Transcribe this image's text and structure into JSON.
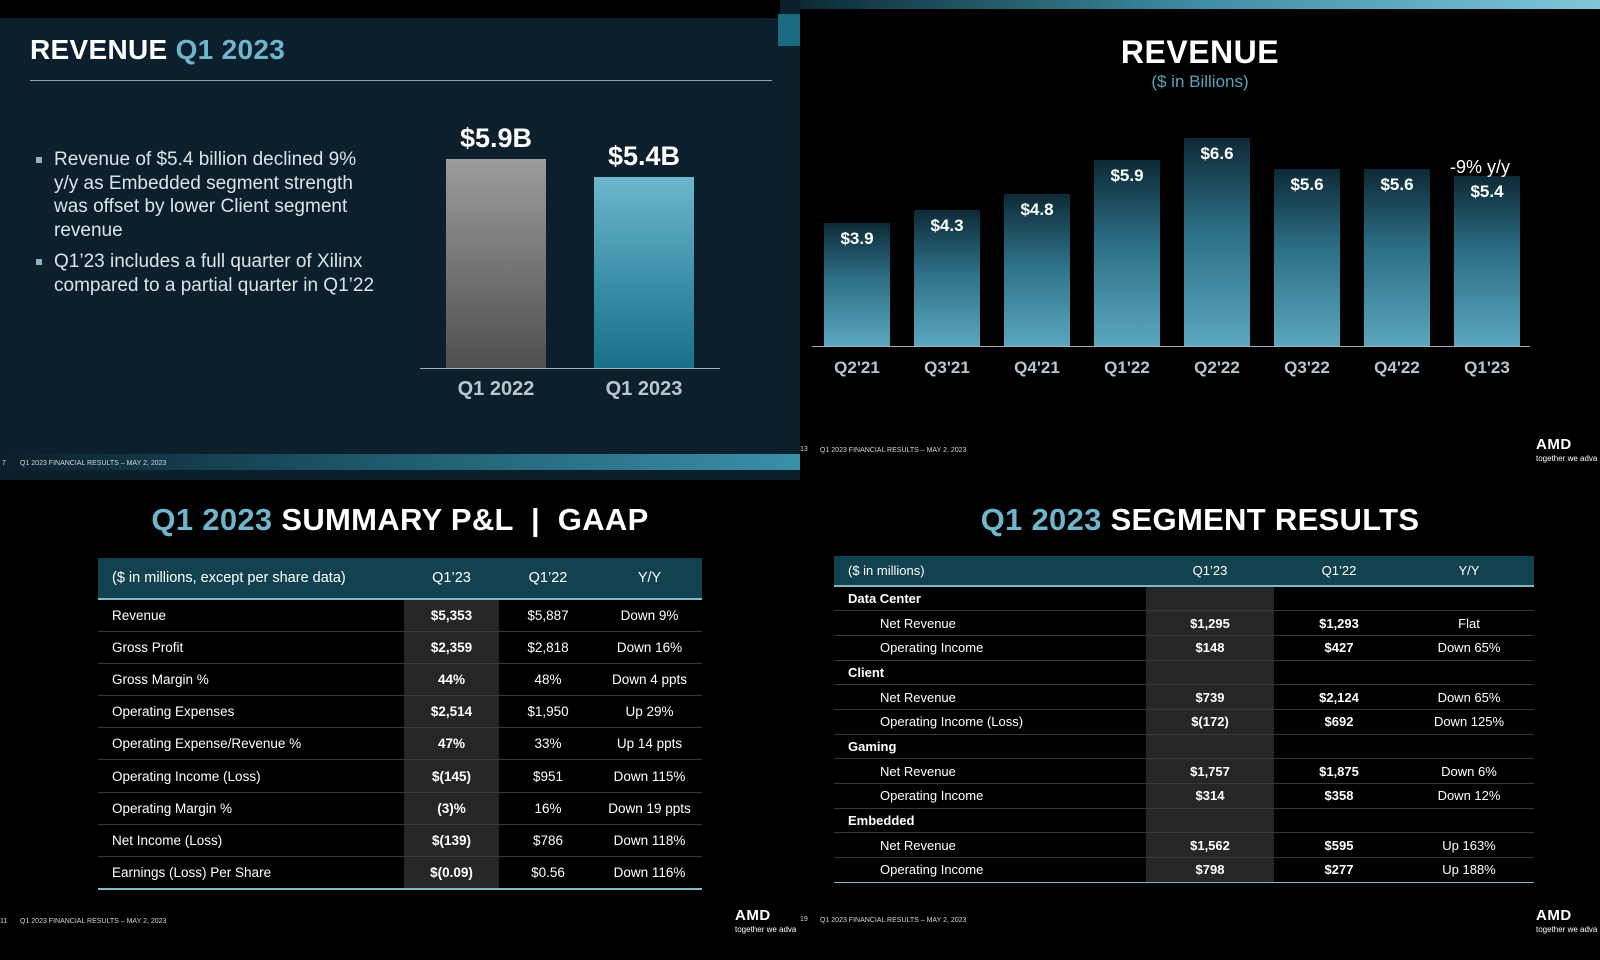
{
  "panel1": {
    "title_main": "REVENUE",
    "title_accent": "Q1 2023",
    "bullets": [
      "Revenue of $5.4 billion declined 9% y/y as Embedded segment strength was offset by lower Client segment revenue",
      "Q1’23 includes a full quarter of Xilinx compared to a partial quarter in Q1’22"
    ],
    "footer": "Q1 2023 FINANCIAL RESULTS – MAY 2, 2023",
    "page_number": "7"
  },
  "panel2": {
    "title": "REVENUE",
    "subtitle": "($ in Billions)",
    "annotation": "-9% y/y",
    "footer": "Q1 2023 FINANCIAL RESULTS – MAY 2, 2023",
    "page_number": "13",
    "logo": "AMD",
    "tagline": "together we adva"
  },
  "panel3": {
    "title_accent": "Q1 2023",
    "title_main": "SUMMARY P&L  |  GAAP",
    "headers": [
      "($ in millions, except per share data)",
      "Q1’23",
      "Q1’22",
      "Y/Y"
    ],
    "rows": [
      {
        "label": "Revenue",
        "q123": "$5,353",
        "q122": "$5,887",
        "yy": "Down 9%",
        "indent": false
      },
      {
        "label": "Gross Profit",
        "q123": "$2,359",
        "q122": "$2,818",
        "yy": "Down 16%",
        "indent": false
      },
      {
        "label": "Gross Margin %",
        "q123": "44%",
        "q122": "48%",
        "yy": "Down 4 ppts",
        "indent": true
      },
      {
        "label": "Operating Expenses",
        "q123": "$2,514",
        "q122": "$1,950",
        "yy": "Up 29%",
        "indent": false
      },
      {
        "label": "Operating Expense/Revenue %",
        "q123": "47%",
        "q122": "33%",
        "yy": "Up 14 ppts",
        "indent": true
      },
      {
        "label": "Operating Income (Loss)",
        "q123": "$(145)",
        "q122": "$951",
        "yy": "Down 115%",
        "indent": false
      },
      {
        "label": "Operating Margin %",
        "q123": "(3)%",
        "q122": "16%",
        "yy": "Down 19 ppts",
        "indent": true
      },
      {
        "label": "Net Income (Loss)",
        "q123": "$(139)",
        "q122": "$786",
        "yy": "Down 118%",
        "indent": false
      },
      {
        "label": "Earnings (Loss) Per Share",
        "q123": "$(0.09)",
        "q122": "$0.56",
        "yy": "Down 116%",
        "indent": false
      }
    ],
    "footer": "Q1 2023 FINANCIAL RESULTS – MAY 2, 2023",
    "page_number": "11",
    "logo": "AMD",
    "tagline": "together we adva"
  },
  "panel4": {
    "title_accent": "Q1 2023",
    "title_main": "SEGMENT RESULTS",
    "headers": [
      "($ in millions)",
      "Q1’23",
      "Q1’22",
      "Y/Y"
    ],
    "rows": [
      {
        "label": "Data Center",
        "group": true
      },
      {
        "label": "Net Revenue",
        "q123": "$1,295",
        "q122": "$1,293",
        "yy": "Flat"
      },
      {
        "label": "Operating Income",
        "q123": "$148",
        "q122": "$427",
        "yy": "Down 65%"
      },
      {
        "label": "Client",
        "group": true
      },
      {
        "label": "Net Revenue",
        "q123": "$739",
        "q122": "$2,124",
        "yy": "Down 65%"
      },
      {
        "label": "Operating Income (Loss)",
        "q123": "$(172)",
        "q122": "$692",
        "yy": "Down 125%"
      },
      {
        "label": "Gaming",
        "group": true
      },
      {
        "label": "Net Revenue",
        "q123": "$1,757",
        "q122": "$1,875",
        "yy": "Down 6%"
      },
      {
        "label": "Operating Income",
        "q123": "$314",
        "q122": "$358",
        "yy": "Down 12%"
      },
      {
        "label": "Embedded",
        "group": true
      },
      {
        "label": "Net Revenue",
        "q123": "$1,562",
        "q122": "$595",
        "yy": "Up 163%"
      },
      {
        "label": "Operating Income",
        "q123": "$798",
        "q122": "$277",
        "yy": "Up 188%"
      }
    ],
    "footer": "Q1 2023 FINANCIAL RESULTS – MAY 2, 2023",
    "page_number": "19",
    "logo": "AMD",
    "tagline": "together we adva"
  },
  "chart_data": [
    {
      "type": "bar",
      "title": "REVENUE Q1 2023",
      "categories": [
        "Q1 2022",
        "Q1 2023"
      ],
      "values": [
        5.9,
        5.4
      ],
      "data_labels": [
        "$5.9B",
        "$5.4B"
      ],
      "ylim": [
        0,
        6.5
      ],
      "colors": [
        "#9a9a9a",
        "#5ba9c0"
      ]
    },
    {
      "type": "bar",
      "title": "REVENUE",
      "subtitle": "($ in Billions)",
      "categories": [
        "Q2'21",
        "Q3'21",
        "Q4'21",
        "Q1'22",
        "Q2'22",
        "Q3'22",
        "Q4'22",
        "Q1'23"
      ],
      "values": [
        3.9,
        4.3,
        4.8,
        5.9,
        6.6,
        5.6,
        5.6,
        5.4
      ],
      "data_labels": [
        "$3.9",
        "$4.3",
        "$4.8",
        "$5.9",
        "$6.6",
        "$5.6",
        "$5.6",
        "$5.4"
      ],
      "annotation": "-9% y/y",
      "ylim": [
        0,
        7.0
      ],
      "colors": [
        "#0d2c38",
        "#5aa7bf"
      ]
    }
  ]
}
